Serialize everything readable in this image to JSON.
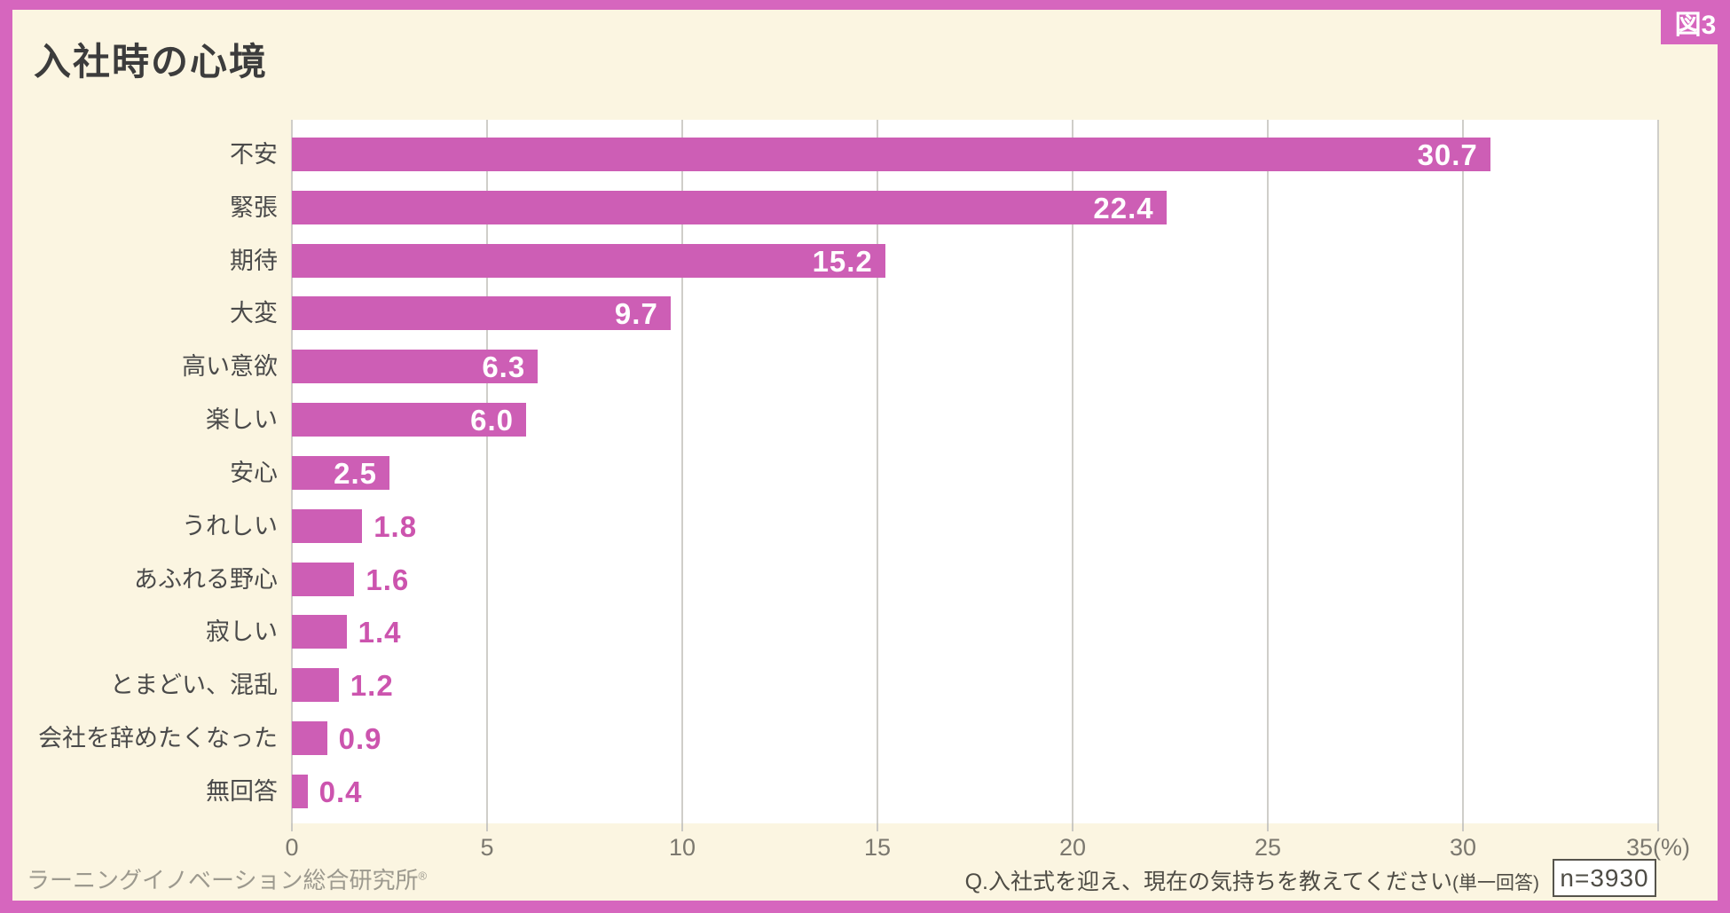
{
  "figure_label": "図3",
  "title": "入社時の心境",
  "colors": {
    "frame": "#D666BE",
    "background": "#FBF5E1",
    "plot_background": "#FFFFFF",
    "bar": "#CD5EB5",
    "gridline": "#CFCEC9",
    "value_inside": "#FFFFFF",
    "value_outside": "#CC54AE",
    "label_text": "#4A4A4A",
    "tick_text": "#7B786F"
  },
  "chart_data": {
    "type": "bar",
    "orientation": "horizontal",
    "title": "入社時の心境",
    "categories": [
      "不安",
      "緊張",
      "期待",
      "大変",
      "高い意欲",
      "楽しい",
      "安心",
      "うれしい",
      "あふれる野心",
      "寂しい",
      "とまどい、混乱",
      "会社を辞めたくなった",
      "無回答"
    ],
    "values": [
      30.7,
      22.4,
      15.2,
      9.7,
      6.3,
      6.0,
      2.5,
      1.8,
      1.6,
      1.4,
      1.2,
      0.9,
      0.4
    ],
    "value_labels": [
      "30.7",
      "22.4",
      "15.2",
      "9.7",
      "6.3",
      "6.0",
      "2.5",
      "1.8",
      "1.6",
      "1.4",
      "1.2",
      "0.9",
      "0.4"
    ],
    "xlabel": "",
    "ylabel": "",
    "xlim": [
      0,
      35
    ],
    "x_ticks": [
      0,
      5,
      10,
      15,
      20,
      25,
      30,
      35
    ],
    "x_unit_suffix": "(%)",
    "grid": true,
    "legend": false,
    "inside_label_threshold": 2.0
  },
  "footer": {
    "source": "ラーニングイノベーション総合研究所",
    "source_mark": "®",
    "question": "Q.入社式を迎え、現在の気持ちを教えてください",
    "question_note": "(単一回答)",
    "sample_size": "n=3930"
  }
}
